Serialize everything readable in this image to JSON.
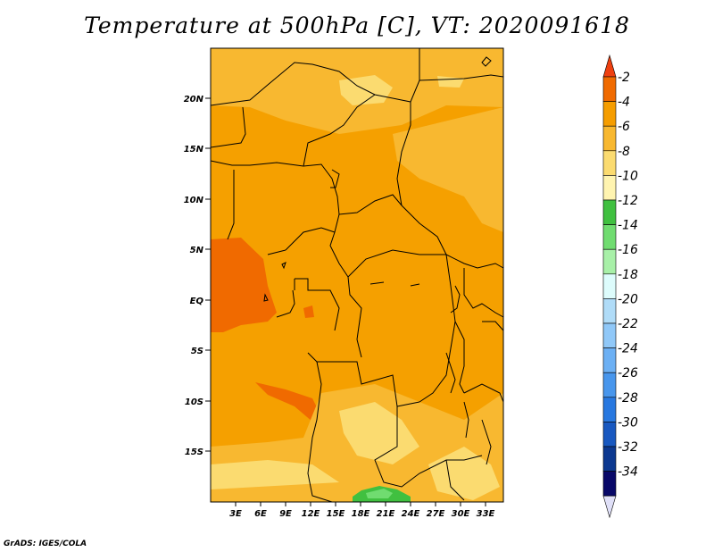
{
  "title": "Temperature at 500hPa [C], VT: 2020091618",
  "credit": "GrADS: IGES/COLA",
  "map": {
    "lat_labels": [
      "20N",
      "15N",
      "10N",
      "5N",
      "EQ",
      "5S",
      "10S",
      "15S"
    ],
    "lon_labels": [
      "3E",
      "6E",
      "9E",
      "12E",
      "15E",
      "18E",
      "21E",
      "24E",
      "27E",
      "30E",
      "33E"
    ]
  },
  "colorbar": {
    "labels": [
      "-2",
      "-4",
      "-6",
      "-8",
      "-10",
      "-12",
      "-14",
      "-16",
      "-18",
      "-20",
      "-22",
      "-24",
      "-26",
      "-28",
      "-30",
      "-32",
      "-34"
    ],
    "colors": [
      "#ee4010",
      "#f06a00",
      "#f59d00",
      "#f8b830",
      "#fbdb70",
      "#fff4b0",
      "#40c040",
      "#70dc70",
      "#a8f0a8",
      "#ddfcfc",
      "#b0dcf8",
      "#90c8f8",
      "#6cb0f4",
      "#4896ec",
      "#2878e0",
      "#1858c0",
      "#0c3890",
      "#080868",
      "#e0e0f8"
    ]
  },
  "colors": {
    "dominant": "#f5a000",
    "warm": "#f06a00",
    "light": "#f8c040",
    "pale": "#fbdb70",
    "green": "#40c040"
  }
}
